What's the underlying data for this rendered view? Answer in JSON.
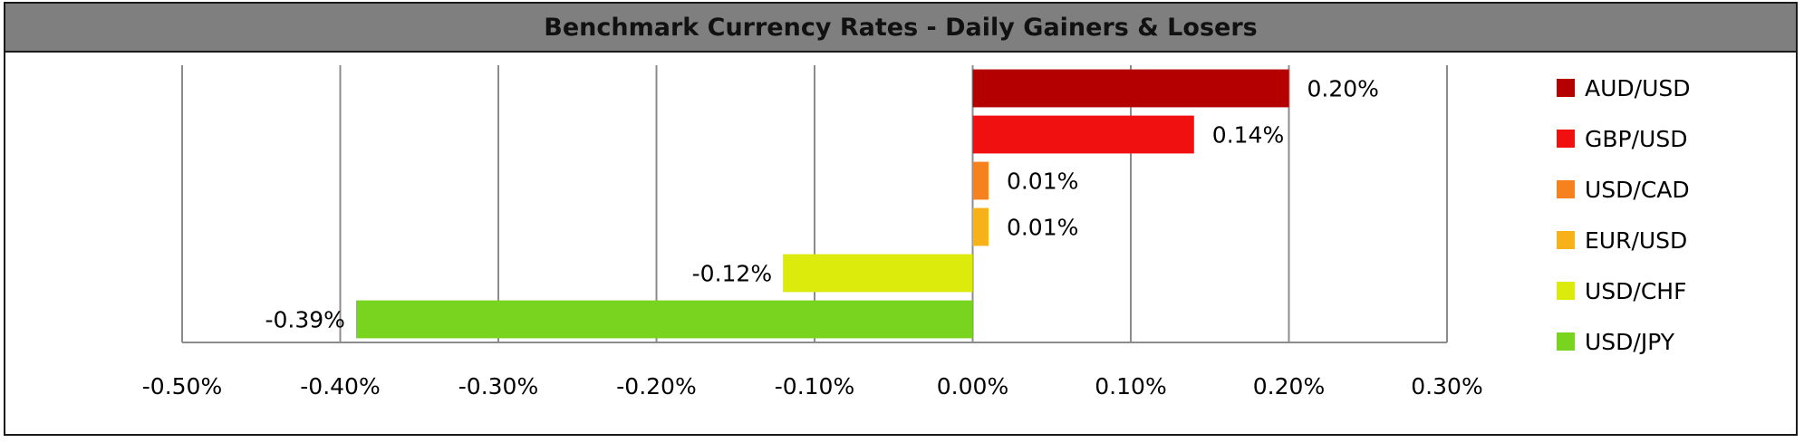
{
  "chart_data": {
    "type": "bar",
    "orientation": "horizontal",
    "title": "Benchmark Currency Rates - Daily Gainers & Losers",
    "xlabel": "",
    "ylabel": "",
    "xlim": [
      -0.5,
      0.3
    ],
    "x_ticks": [
      -0.5,
      -0.4,
      -0.3,
      -0.2,
      -0.1,
      0.0,
      0.1,
      0.2,
      0.3
    ],
    "x_tick_labels": [
      "-0.50%",
      "-0.40%",
      "-0.30%",
      "-0.20%",
      "-0.10%",
      "0.00%",
      "0.10%",
      "0.20%",
      "0.30%"
    ],
    "grid": "vertical",
    "legend_position": "right",
    "series": [
      {
        "name": "AUD/USD",
        "value": 0.2,
        "label": "0.20%",
        "color": "#b50000"
      },
      {
        "name": "GBP/USD",
        "value": 0.14,
        "label": "0.14%",
        "color": "#f01010"
      },
      {
        "name": "USD/CAD",
        "value": 0.01,
        "label": "0.01%",
        "color": "#f5821f"
      },
      {
        "name": "EUR/USD",
        "value": 0.01,
        "label": "0.01%",
        "color": "#f7b21a"
      },
      {
        "name": "USD/CHF",
        "value": -0.12,
        "label": "-0.12%",
        "color": "#dcea0c"
      },
      {
        "name": "USD/JPY",
        "value": -0.39,
        "label": "-0.39%",
        "color": "#78d41e"
      }
    ]
  }
}
